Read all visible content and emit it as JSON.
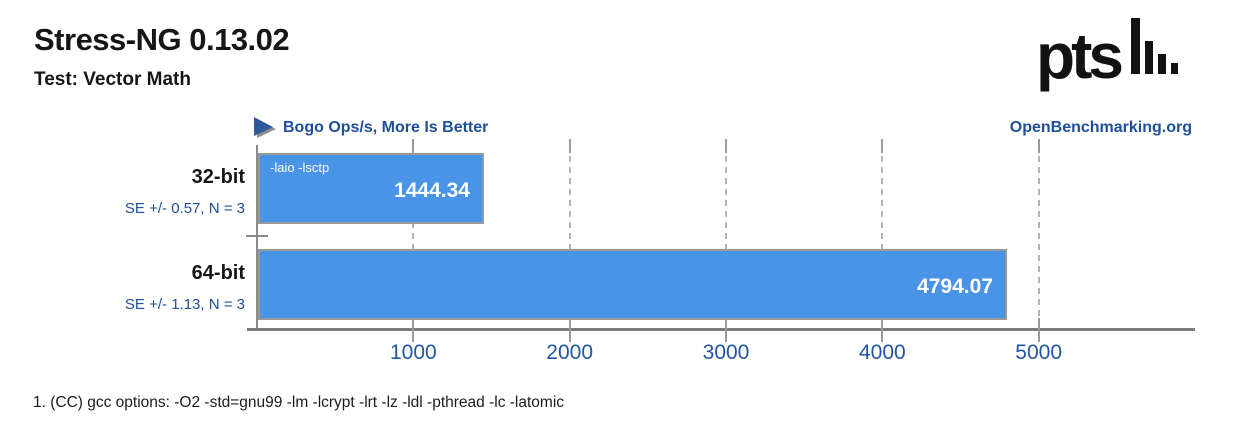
{
  "header": {
    "title": "Stress-NG 0.13.02",
    "subtitle": "Test: Vector Math"
  },
  "branding": {
    "logo_text": "pts",
    "site_label": "OpenBenchmarking.org"
  },
  "legend": {
    "label": "Bogo Ops/s, More Is Better"
  },
  "chart_data": {
    "type": "bar",
    "orientation": "horizontal",
    "title": "Stress-NG 0.13.02",
    "subtitle": "Test: Vector Math",
    "value_axis_label": "Bogo Ops/s, More Is Better",
    "more_is_better": true,
    "categories": [
      "32-bit",
      "64-bit"
    ],
    "values": [
      1444.34,
      4794.07
    ],
    "value_labels": [
      "1444.34",
      "4794.07"
    ],
    "error_labels": [
      "SE +/- 0.57, N = 3",
      "SE +/- 1.13, N = 3"
    ],
    "bar_annotations": [
      "-laio -lsctp",
      ""
    ],
    "x_ticks": [
      1000,
      2000,
      3000,
      4000,
      5000
    ],
    "xlim": [
      0,
      6000
    ],
    "grid": "dashed-vertical",
    "legend_position": "top-left"
  },
  "footnotes": [
    "1. (CC) gcc options: -O2 -std=gnu99 -lm -lcrypt -lrt -lz -ldl -pthread -lc -latomic"
  ],
  "colors": {
    "bar_fill": "#4a94e8",
    "bar_border": "#999999",
    "accent_blue": "#1f4f9b",
    "tick_blue": "#2255a4",
    "axis_gray": "#8a8a8a",
    "grid_gray": "#b4b4b4",
    "text_black": "#161616"
  }
}
